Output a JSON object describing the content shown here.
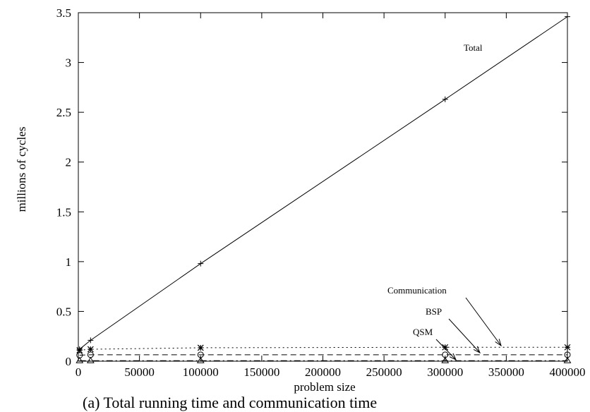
{
  "chart_data": {
    "type": "line",
    "caption": "(a) Total running time and communication time",
    "xlabel": "problem size",
    "ylabel": "millions of cycles",
    "xlim": [
      0,
      400000
    ],
    "ylim": [
      0,
      3.5
    ],
    "xticks": [
      "0",
      "50000",
      "100000",
      "150000",
      "200000",
      "250000",
      "300000",
      "350000",
      "400000"
    ],
    "yticks": [
      "0",
      "0.5",
      "1",
      "1.5",
      "2",
      "2.5",
      "3",
      "3.5"
    ],
    "grid": false,
    "legend": "none",
    "series": [
      {
        "name": "Total",
        "style": "solid",
        "marker": "plus",
        "x": [
          1000,
          10000,
          100000,
          300000,
          400000
        ],
        "y": [
          0.12,
          0.21,
          0.98,
          2.63,
          3.46
        ]
      },
      {
        "name": "Communication",
        "style": "dotted",
        "marker": "star",
        "x": [
          1000,
          10000,
          100000,
          300000,
          400000
        ],
        "y": [
          0.11,
          0.12,
          0.135,
          0.14,
          0.14
        ]
      },
      {
        "name": "BSP",
        "style": "dashed",
        "marker": "circle",
        "x": [
          1000,
          10000,
          100000,
          300000,
          400000
        ],
        "y": [
          0.06,
          0.065,
          0.065,
          0.065,
          0.065
        ]
      },
      {
        "name": "QSM",
        "style": "dashdot",
        "marker": "triangle",
        "x": [
          1000,
          10000,
          100000,
          300000,
          400000
        ],
        "y": [
          0.005,
          0.005,
          0.005,
          0.005,
          0.005
        ]
      }
    ],
    "annotations": [
      {
        "text": "Total",
        "series": "Total",
        "arrow": false
      },
      {
        "text": "Communication",
        "series": "Communication",
        "arrow": true
      },
      {
        "text": "BSP",
        "series": "BSP",
        "arrow": true
      },
      {
        "text": "QSM",
        "series": "QSM",
        "arrow": true
      }
    ]
  }
}
